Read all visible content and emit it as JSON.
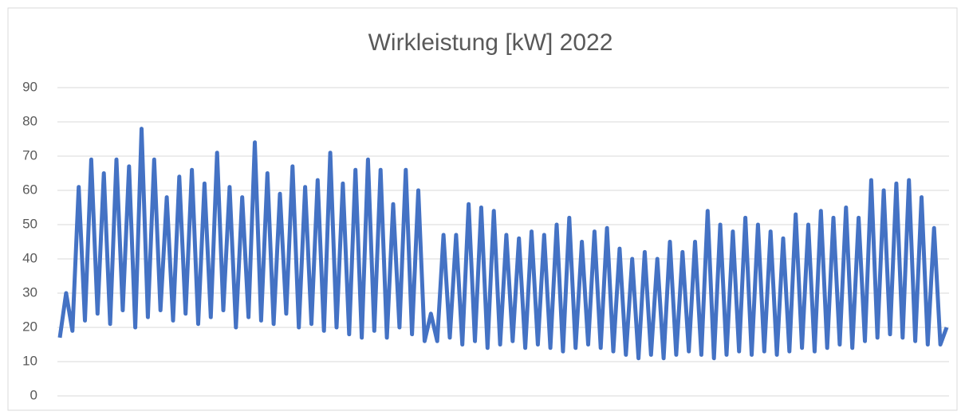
{
  "chart_data": {
    "type": "line",
    "title": "Wirkleistung [kW] 2022",
    "series": [
      {
        "name": "Wirkleistung",
        "color": "#4472c4",
        "values": [
          17,
          30,
          19,
          61,
          22,
          69,
          24,
          65,
          21,
          69,
          25,
          67,
          20,
          78,
          23,
          69,
          25,
          58,
          22,
          64,
          24,
          66,
          21,
          62,
          23,
          71,
          25,
          61,
          20,
          58,
          23,
          74,
          22,
          65,
          21,
          59,
          24,
          67,
          20,
          61,
          21,
          63,
          19,
          71,
          20,
          62,
          18,
          66,
          17,
          69,
          19,
          66,
          17,
          56,
          20,
          66,
          18,
          60,
          16,
          24,
          16,
          47,
          17,
          47,
          15,
          56,
          16,
          55,
          14,
          54,
          15,
          47,
          16,
          46,
          14,
          48,
          15,
          47,
          14,
          50,
          13,
          52,
          14,
          45,
          15,
          48,
          14,
          49,
          13,
          43,
          12,
          40,
          11,
          42,
          12,
          40,
          11,
          45,
          12,
          42,
          13,
          45,
          12,
          54,
          11,
          50,
          12,
          48,
          13,
          52,
          12,
          50,
          13,
          48,
          12,
          46,
          13,
          53,
          14,
          50,
          13,
          54,
          14,
          52,
          15,
          55,
          14,
          52,
          16,
          63,
          17,
          60,
          18,
          62,
          17,
          63,
          16,
          58,
          15,
          49,
          15,
          20
        ]
      }
    ],
    "ylim": [
      0,
      90
    ],
    "yticks": [
      0,
      10,
      20,
      30,
      40,
      50,
      60,
      70,
      80,
      90
    ],
    "grid": true
  }
}
